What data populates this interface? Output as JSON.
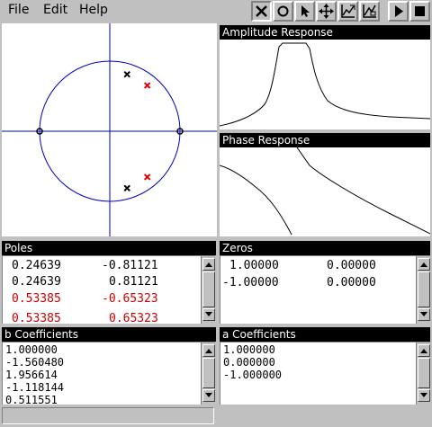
{
  "menu": {
    "file": "File",
    "edit": "Edit",
    "help": "Help"
  },
  "toolbar": {
    "tools": [
      {
        "icon": "delete-x-icon"
      },
      {
        "icon": "circle-zero-icon"
      },
      {
        "icon": "pointer-arrow-icon"
      },
      {
        "icon": "move-cross-icon"
      },
      {
        "icon": "zoom-plot-icon"
      },
      {
        "icon": "zoom-plot-alt-icon"
      },
      {
        "icon": "play-icon"
      },
      {
        "icon": "stop-icon"
      }
    ]
  },
  "zplane": {
    "unit_circle_color": "#0000c0",
    "poles": [
      {
        "re": 0.24639,
        "im": 0.81121,
        "color": "#000000"
      },
      {
        "re": 0.24639,
        "im": -0.81121,
        "color": "#000000"
      },
      {
        "re": 0.53385,
        "im": 0.65323,
        "color": "#e00000"
      },
      {
        "re": 0.53385,
        "im": -0.65323,
        "color": "#e00000"
      }
    ],
    "zeros": [
      {
        "re": 1.0,
        "im": 0.0
      },
      {
        "re": -1.0,
        "im": 0.0
      }
    ]
  },
  "amplitude": {
    "title": "Amplitude Response"
  },
  "phase": {
    "title": "Phase Response"
  },
  "poles_list": {
    "title": "Poles",
    "rows": [
      {
        "re": "0.24639",
        "im": "-0.81121",
        "color": "#000000"
      },
      {
        "re": "0.24639",
        "im": "0.81121",
        "color": "#000000"
      },
      {
        "re": "0.53385",
        "im": "-0.65323",
        "color": "#d00000"
      },
      {
        "re": "0.53385",
        "im": "0.65323",
        "color": "#d00000"
      }
    ]
  },
  "zeros_list": {
    "title": "Zeros",
    "rows": [
      {
        "re": "1.00000",
        "im": "0.00000"
      },
      {
        "re": "-1.00000",
        "im": "0.00000"
      }
    ]
  },
  "b_coeffs": {
    "title": "b Coefficients",
    "values": [
      "1.000000",
      "-1.560480",
      "1.956614",
      "-1.118144",
      "0.511551"
    ]
  },
  "a_coeffs": {
    "title": "a Coefficients",
    "values": [
      "1.000000",
      "0.000000",
      "-1.000000"
    ]
  },
  "status": {
    "text": ""
  }
}
